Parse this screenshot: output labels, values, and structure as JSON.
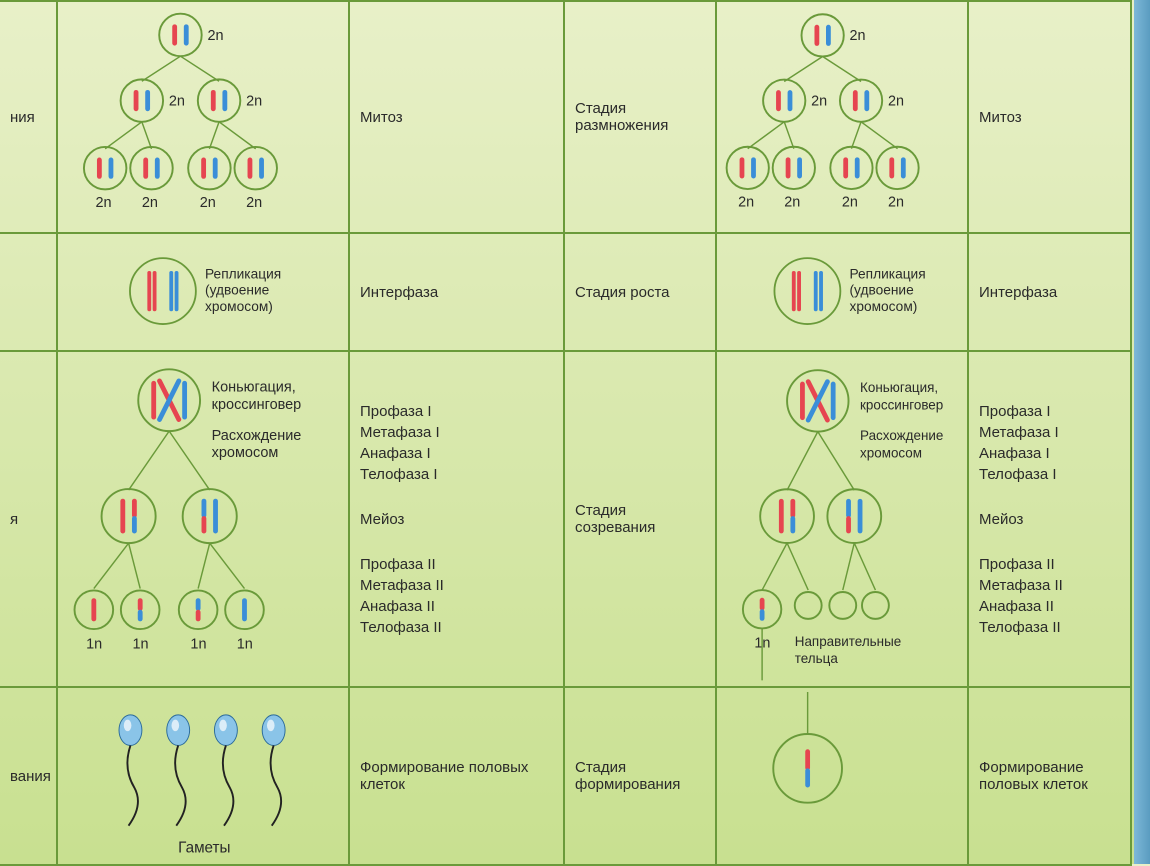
{
  "colors": {
    "border": "#6a9a3a",
    "bg_top": "#e8f0c8",
    "bg_bottom": "#c8e090",
    "red": "#e64550",
    "blue": "#3a8ed8",
    "cell_stroke": "#6a9a3a",
    "sperm": "#8ac4e8"
  },
  "left": {
    "row1": {
      "side": "ния",
      "phase": "Митоз"
    },
    "row2": {
      "side": "",
      "phase": "Интерфаза",
      "caption": "Репликация (удвоение хромосом)"
    },
    "row3": {
      "side": "я",
      "captions": [
        "Коньюгация, кроссинговер",
        "Расхождение хромосом"
      ],
      "phases1": [
        "Профаза I",
        "Метафаза I",
        "Анафаза I",
        "Телофаза I"
      ],
      "mid": "Мейоз",
      "phases2": [
        "Профаза II",
        "Метафаза II",
        "Анафаза II",
        "Телофаза II"
      ]
    },
    "row4": {
      "side": "вания",
      "phase": "Формирование половых клеток",
      "caption": "Гаметы"
    }
  },
  "right": {
    "row1": {
      "side": "Стадия размножения",
      "phase": "Митоз"
    },
    "row2": {
      "side": "Стадия роста",
      "phase": "Интерфаза",
      "caption": "Репликация (удвоение хромосом)"
    },
    "row3": {
      "side": "Стадия созревания",
      "captions": [
        "Коньюгация, кроссинговер",
        "Расхождение хромосом"
      ],
      "phases1": [
        "Профаза I",
        "Метафаза I",
        "Анафаза I",
        "Телофаза I"
      ],
      "mid": "Мейоз",
      "phases2": [
        "Профаза II",
        "Метафаза II",
        "Анафаза II",
        "Телофаза II"
      ],
      "polar": "Направительные тельца"
    },
    "row4": {
      "side": "Стадия формирования",
      "phase": "Формирование половых клеток"
    }
  },
  "ploidy": {
    "n2": "2n",
    "n1": "1n"
  }
}
